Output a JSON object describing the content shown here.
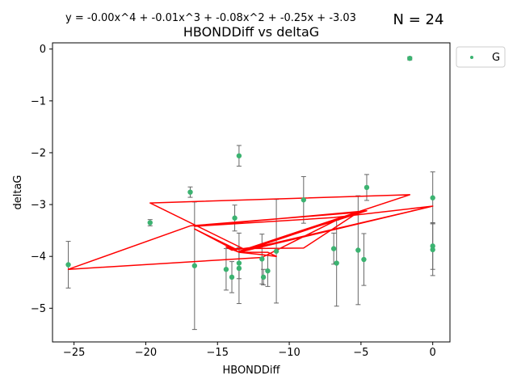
{
  "chart_data": {
    "type": "scatter",
    "title": "HBONDDiff vs deltaG",
    "equation": "y = -0.00x^4 + -0.01x^3 + -0.08x^2 + -0.25x + -3.03",
    "n_label": "N = 24",
    "xlabel": "HBONDDiff",
    "ylabel": "deltaG",
    "xlim": [
      -26.5,
      1.2
    ],
    "ylim": [
      -5.65,
      0.12
    ],
    "xticks": [
      -25,
      -20,
      -15,
      -10,
      -5,
      0
    ],
    "xtick_labels": [
      "−25",
      "−20",
      "−15",
      "−10",
      "−5",
      "0"
    ],
    "yticks": [
      0,
      -1,
      -2,
      -3,
      -4,
      -5
    ],
    "ytick_labels": [
      "0",
      "−1",
      "−2",
      "−3",
      "−4",
      "−5"
    ],
    "grid": false,
    "legend": {
      "placement": "outside-top-right",
      "label": "G"
    },
    "colors": {
      "points": "#3cb371",
      "error_bars": "#666666",
      "fit": "#ff0000"
    },
    "points": [
      {
        "x": -1.6,
        "y": -0.18,
        "err": 0.03
      },
      {
        "x": -25.4,
        "y": -4.16,
        "err": 0.45
      },
      {
        "x": -19.7,
        "y": -3.35,
        "err": 0.06
      },
      {
        "x": -16.9,
        "y": -2.76,
        "err": 0.1
      },
      {
        "x": -16.6,
        "y": -4.18,
        "err": 1.23
      },
      {
        "x": -14.4,
        "y": -4.25,
        "err": 0.4
      },
      {
        "x": -14.0,
        "y": -4.4,
        "err": 0.3
      },
      {
        "x": -13.8,
        "y": -3.26,
        "err": 0.25
      },
      {
        "x": -13.5,
        "y": -2.06,
        "err": 0.2
      },
      {
        "x": -13.5,
        "y": -4.13,
        "err": 0.3
      },
      {
        "x": -13.5,
        "y": -4.23,
        "err": 0.68
      },
      {
        "x": -11.9,
        "y": -4.05,
        "err": 0.48
      },
      {
        "x": -11.8,
        "y": -4.4,
        "err": 0.15
      },
      {
        "x": -11.5,
        "y": -4.28,
        "err": 0.3
      },
      {
        "x": -10.9,
        "y": -3.9,
        "err": 1.0
      },
      {
        "x": -9.0,
        "y": -2.91,
        "err": 0.45
      },
      {
        "x": -6.9,
        "y": -3.85,
        "err": 0.3
      },
      {
        "x": -6.7,
        "y": -4.13,
        "err": 0.83
      },
      {
        "x": -5.2,
        "y": -3.88,
        "err": 1.05
      },
      {
        "x": -4.8,
        "y": -4.06,
        "err": 0.5
      },
      {
        "x": -4.6,
        "y": -2.67,
        "err": 0.25
      },
      {
        "x": 0.0,
        "y": -2.87,
        "err": 0.5
      },
      {
        "x": 0.0,
        "y": -3.8,
        "err": 0.45
      },
      {
        "x": 0.0,
        "y": -3.87,
        "err": 0.5
      }
    ],
    "fit_coefficients": [
      -0.0,
      -0.01,
      -0.08,
      -0.25,
      -3.03
    ],
    "fit_line": [
      {
        "x": -4.8,
        "y": -3.12
      },
      {
        "x": -13.0,
        "y": -3.88
      },
      {
        "x": -19.7,
        "y": -2.97
      },
      {
        "x": -1.6,
        "y": -2.81
      },
      {
        "x": -13.5,
        "y": -3.9
      },
      {
        "x": -6.7,
        "y": -3.3
      },
      {
        "x": -11.9,
        "y": -4.02
      },
      {
        "x": -25.4,
        "y": -4.25
      },
      {
        "x": -16.9,
        "y": -3.41
      },
      {
        "x": -5.2,
        "y": -3.15
      },
      {
        "x": -9.0,
        "y": -3.84
      },
      {
        "x": -13.8,
        "y": -3.85
      },
      {
        "x": -16.6,
        "y": -3.47
      },
      {
        "x": -13.5,
        "y": -3.92
      },
      {
        "x": -11.8,
        "y": -3.97
      },
      {
        "x": -10.9,
        "y": -4.0
      },
      {
        "x": -11.5,
        "y": -3.92
      },
      {
        "x": -13.5,
        "y": -3.92
      },
      {
        "x": -14.4,
        "y": -3.82
      },
      {
        "x": -14.0,
        "y": -3.88
      },
      {
        "x": -11.9,
        "y": -3.8
      },
      {
        "x": 0.0,
        "y": -3.03
      },
      {
        "x": -13.5,
        "y": -3.9
      },
      {
        "x": -4.6,
        "y": -3.12
      },
      {
        "x": -16.6,
        "y": -3.42
      },
      {
        "x": -6.9,
        "y": -3.25
      },
      {
        "x": 0.0,
        "y": -3.03
      },
      {
        "x": -13.5,
        "y": -3.92
      }
    ]
  }
}
